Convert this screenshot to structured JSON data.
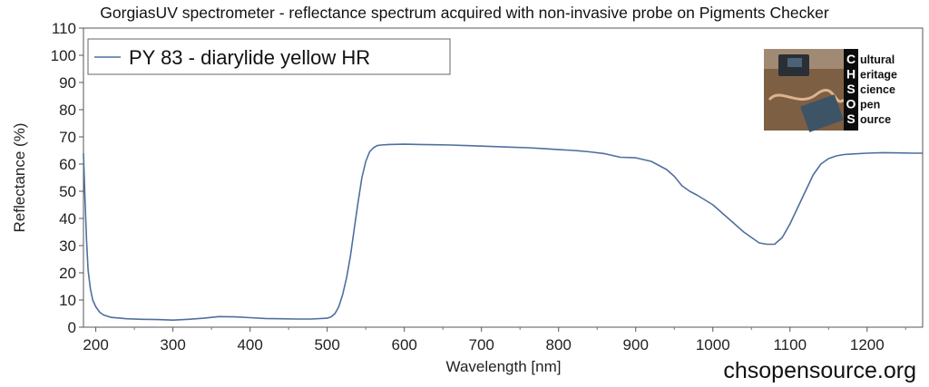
{
  "chart_data": {
    "type": "line",
    "title": "GorgiasUV spectrometer - reflectance spectrum acquired with non-invasive probe on Pigments Checker",
    "xlabel": "Wavelength [nm]",
    "ylabel": "Reflectance (%)",
    "xlim": [
      184,
      1272
    ],
    "ylim": [
      0,
      110
    ],
    "x_ticks": [
      "200",
      "300",
      "400",
      "500",
      "600",
      "700",
      "800",
      "900",
      "1000",
      "1100",
      "1200"
    ],
    "y_ticks": [
      "0",
      "10",
      "20",
      "30",
      "40",
      "50",
      "60",
      "70",
      "80",
      "90",
      "100",
      "110"
    ],
    "grid": false,
    "legend_position": "top-left",
    "series": [
      {
        "name": "PY 83 - diarylide yellow HR",
        "color": "#4f6f9f",
        "x": [
          184,
          186,
          188,
          190,
          193,
          196,
          200,
          205,
          210,
          220,
          240,
          260,
          280,
          300,
          320,
          340,
          360,
          380,
          400,
          420,
          440,
          460,
          480,
          500,
          505,
          510,
          515,
          520,
          525,
          530,
          535,
          540,
          545,
          550,
          555,
          560,
          565,
          570,
          580,
          600,
          620,
          640,
          660,
          680,
          700,
          720,
          740,
          760,
          780,
          800,
          820,
          840,
          860,
          880,
          900,
          920,
          940,
          950,
          960,
          970,
          980,
          1000,
          1020,
          1040,
          1060,
          1070,
          1080,
          1090,
          1100,
          1110,
          1120,
          1130,
          1140,
          1150,
          1160,
          1170,
          1180,
          1200,
          1220,
          1240,
          1260,
          1272
        ],
        "y": [
          64,
          47,
          32,
          21,
          14,
          10,
          7.5,
          5.5,
          4.5,
          3.6,
          3.1,
          2.9,
          2.8,
          2.6,
          2.9,
          3.3,
          3.9,
          3.8,
          3.5,
          3.2,
          3.1,
          3.0,
          3.0,
          3.3,
          3.8,
          5.0,
          7.5,
          12,
          18,
          26,
          36,
          46,
          55,
          61,
          64.5,
          66,
          66.8,
          67,
          67.2,
          67.3,
          67.2,
          67.1,
          67,
          66.8,
          66.6,
          66.4,
          66.2,
          66,
          65.7,
          65.3,
          65,
          64.5,
          63.8,
          62.5,
          62.3,
          61,
          58,
          55.5,
          52,
          50,
          48.5,
          45,
          40,
          35,
          31,
          30.5,
          30.5,
          33,
          38,
          44,
          50,
          56,
          60,
          62,
          63,
          63.5,
          63.7,
          64,
          64.2,
          64.1,
          64,
          64
        ]
      }
    ]
  },
  "brand": {
    "logo_letters": [
      "C",
      "H",
      "S",
      "O",
      "S"
    ],
    "logo_words": [
      "ultural",
      "eritage",
      "cience",
      "pen",
      "ource"
    ],
    "website": "chsopensource.org"
  }
}
